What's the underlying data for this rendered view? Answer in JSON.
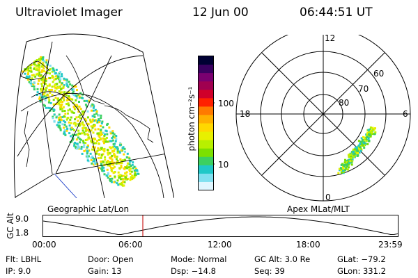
{
  "header": {
    "title": "Ultraviolet Imager",
    "date": "12 Jun 00",
    "time": "06:44:51 UT"
  },
  "geo_panel": {
    "label": "Geographic Lat/Lon"
  },
  "colorbar": {
    "unit_label": "photon cm⁻²s⁻¹",
    "ticks": [
      "100",
      "10"
    ],
    "colors": [
      "#000033",
      "#3a0060",
      "#7a0070",
      "#a00050",
      "#d0002a",
      "#ff2000",
      "#ff7a00",
      "#ffb000",
      "#ffd800",
      "#e8f000",
      "#b8f000",
      "#7ce000",
      "#3cd060",
      "#20c8c8",
      "#80e0f0",
      "#e0f6ff"
    ]
  },
  "polar_panel": {
    "label": "Apex MLat/MLT",
    "mlt_labels": {
      "top": "12",
      "bottom": "0",
      "left": "18",
      "right": "6"
    },
    "mlat_labels": [
      "60",
      "70",
      "80"
    ]
  },
  "timeline": {
    "axis_title": "GC Alt",
    "ymax": "9.0",
    "ymin": "1.8",
    "ticks": [
      "00:00",
      "06:00",
      "12:00",
      "18:00",
      "23:59"
    ],
    "current_time_fraction": 0.281,
    "marker_color": "#cc2020"
  },
  "info": {
    "filter": "Flt: LBHL",
    "door": "Door: Open",
    "mode": "Mode: Normal",
    "gc_alt": "GC Alt: 3.0 Re",
    "glat": "GLat: −79.2",
    "ip": "IP: 9.0",
    "gain": "Gain: 13",
    "dsp": "Dsp: −14.8",
    "seq": "Seq: 39",
    "glon": "GLon: 331.2"
  }
}
